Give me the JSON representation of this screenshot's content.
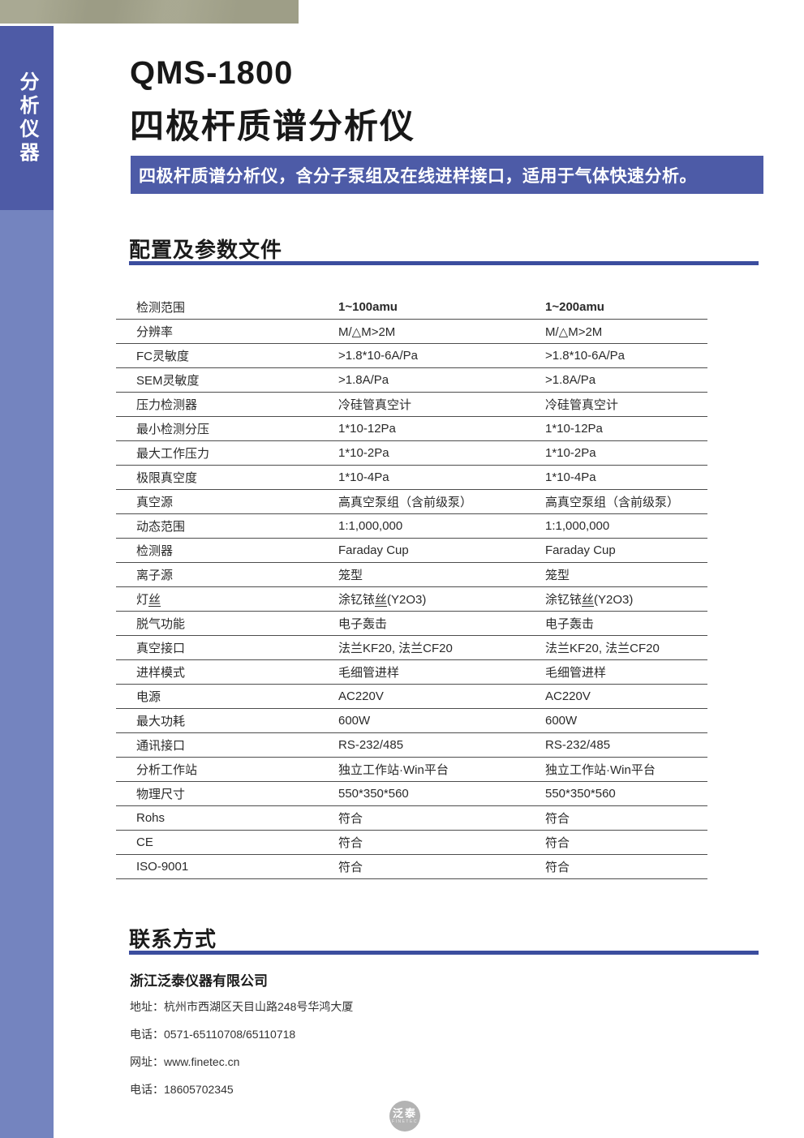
{
  "colors": {
    "accent": "#4d5ba7",
    "sidebar-dark": "#4e5ba6",
    "sidebar-light": "#7484bf",
    "beige": "#a4a48c",
    "rule": "#3b4d9e",
    "logo-gray": "#b3b3b3"
  },
  "sidebar": {
    "category_label": "分析仪器"
  },
  "header": {
    "model": "QMS-1800",
    "product_name": "四极杆质谱分析仪",
    "tagline": "四极杆质谱分析仪，含分子泵组及在线进样接口，适用于气体快速分析。"
  },
  "specs_section": {
    "title": "配置及参数文件",
    "table": {
      "rows": [
        {
          "label": "检测范围",
          "v1": "1~100amu",
          "v2": "1~200amu",
          "bold": true
        },
        {
          "label": "分辨率",
          "v1": "M/△M>2M",
          "v2": "M/△M>2M"
        },
        {
          "label": "FC灵敏度",
          "v1": ">1.8*10-6A/Pa",
          "v2": ">1.8*10-6A/Pa"
        },
        {
          "label": "SEM灵敏度",
          "v1": ">1.8A/Pa",
          "v2": ">1.8A/Pa"
        },
        {
          "label": "压力检测器",
          "v1": "冷硅管真空计",
          "v2": "冷硅管真空计"
        },
        {
          "label": "最小检测分压",
          "v1": "1*10-12Pa",
          "v2": "1*10-12Pa"
        },
        {
          "label": "最大工作压力",
          "v1": "1*10-2Pa",
          "v2": "1*10-2Pa"
        },
        {
          "label": "极限真空度",
          "v1": "1*10-4Pa",
          "v2": "1*10-4Pa"
        },
        {
          "label": "真空源",
          "v1": "高真空泵组（含前级泵）",
          "v2": "高真空泵组（含前级泵）"
        },
        {
          "label": "动态范围",
          "v1": "1:1,000,000",
          "v2": "1:1,000,000"
        },
        {
          "label": "检测器",
          "v1": "Faraday Cup",
          "v2": "Faraday Cup"
        },
        {
          "label": "离子源",
          "v1": "笼型",
          "v2": "笼型"
        },
        {
          "label": "灯丝",
          "v1": "涂钇铱丝(Y2O3)",
          "v2": "涂钇铱丝(Y2O3)"
        },
        {
          "label": "脱气功能",
          "v1": "电子轰击",
          "v2": "电子轰击"
        },
        {
          "label": "真空接口",
          "v1": "法兰KF20, 法兰CF20",
          "v2": "法兰KF20, 法兰CF20"
        },
        {
          "label": "进样模式",
          "v1": "毛细管进样",
          "v2": "毛细管进样"
        },
        {
          "label": "电源",
          "v1": "AC220V",
          "v2": "AC220V"
        },
        {
          "label": "最大功耗",
          "v1": "600W",
          "v2": "600W"
        },
        {
          "label": "通讯接口",
          "v1": "RS-232/485",
          "v2": "RS-232/485"
        },
        {
          "label": "分析工作站",
          "v1": "独立工作站·Win平台",
          "v2": "独立工作站·Win平台"
        },
        {
          "label": "物理尺寸",
          "v1": "550*350*560",
          "v2": "550*350*560"
        },
        {
          "label": "Rohs",
          "v1": "符合",
          "v2": "符合"
        },
        {
          "label": "CE",
          "v1": "符合",
          "v2": "符合"
        },
        {
          "label": "ISO-9001",
          "v1": "符合",
          "v2": "符合"
        }
      ]
    }
  },
  "contact_section": {
    "title": "联系方式",
    "company": "浙江泛泰仪器有限公司",
    "lines": [
      "地址：杭州市西湖区天目山路248号华鸿大厦",
      "电话：0571-65110708/65110718",
      "网址：www.finetec.cn",
      "电话：18605702345"
    ]
  },
  "footer": {
    "logo_text": "泛泰",
    "logo_subtext": "FINETEC"
  }
}
